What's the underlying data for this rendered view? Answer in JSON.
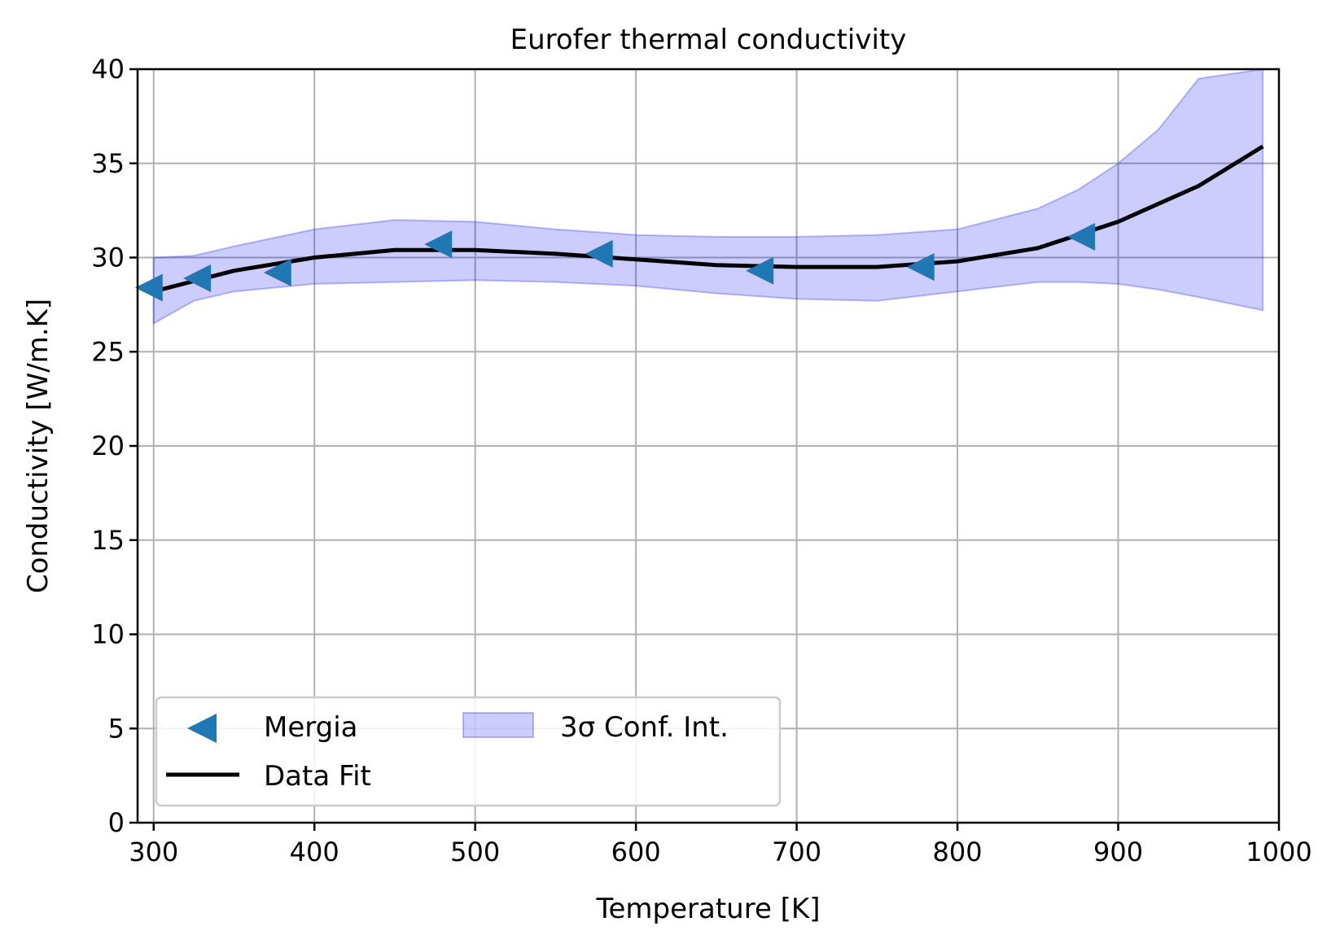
{
  "chart_data": {
    "type": "line",
    "title": "Eurofer thermal conductivity",
    "xlabel": "Temperature [K]",
    "ylabel": "Conductivity [W/m.K]",
    "xlim": [
      290,
      1000
    ],
    "ylim": [
      0,
      40
    ],
    "xticks": [
      300,
      400,
      500,
      600,
      700,
      800,
      900,
      1000
    ],
    "yticks": [
      0,
      5,
      10,
      15,
      20,
      25,
      30,
      35,
      40
    ],
    "grid": true,
    "legend_position": "lower-left",
    "series": [
      {
        "name": "Mergia",
        "kind": "scatter",
        "marker": "triangle-left",
        "color": "#1f77b4",
        "x": [
          297,
          327,
          377,
          477,
          577,
          677,
          777,
          877
        ],
        "y": [
          28.4,
          28.9,
          29.2,
          30.7,
          30.2,
          29.3,
          29.5,
          31.1
        ]
      },
      {
        "name": "Data Fit",
        "kind": "line",
        "color": "#000000",
        "x": [
          300,
          350,
          400,
          450,
          500,
          550,
          600,
          650,
          700,
          750,
          800,
          850,
          900,
          950,
          990
        ],
        "y": [
          28.2,
          29.3,
          30.0,
          30.4,
          30.4,
          30.2,
          29.9,
          29.6,
          29.5,
          29.5,
          29.8,
          30.5,
          31.9,
          33.8,
          35.9
        ]
      },
      {
        "name": "3σ Conf. Int.",
        "kind": "band",
        "color": "#0000ff",
        "x": [
          300,
          325,
          350,
          400,
          450,
          500,
          550,
          600,
          650,
          700,
          750,
          800,
          850,
          875,
          900,
          925,
          950,
          990
        ],
        "upper": [
          30.0,
          30.1,
          30.6,
          31.5,
          32.0,
          31.9,
          31.5,
          31.2,
          31.1,
          31.1,
          31.2,
          31.5,
          32.6,
          33.6,
          35.0,
          36.8,
          39.5,
          40.0
        ],
        "lower": [
          26.5,
          27.7,
          28.2,
          28.6,
          28.7,
          28.8,
          28.7,
          28.5,
          28.1,
          27.8,
          27.7,
          28.2,
          28.7,
          28.7,
          28.6,
          28.3,
          27.9,
          27.2
        ]
      }
    ]
  }
}
